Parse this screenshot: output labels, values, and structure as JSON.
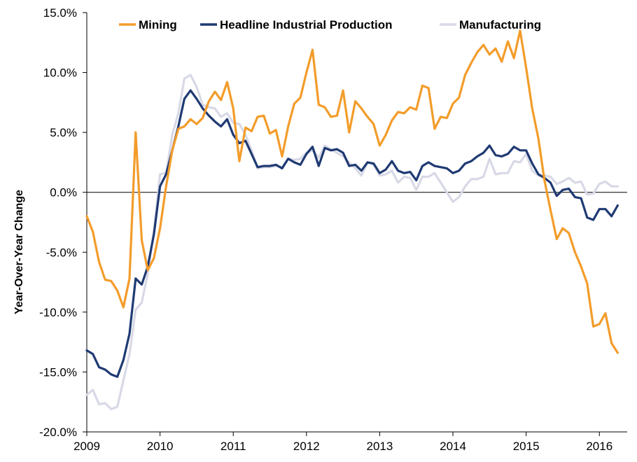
{
  "chart_data": {
    "type": "line",
    "title": "",
    "xlabel": "",
    "ylabel": "Year-Over-Year Change",
    "x_ticks": [
      "2009",
      "2010",
      "2011",
      "2012",
      "2013",
      "2014",
      "2015",
      "2016"
    ],
    "y_ticks": [
      "15.0%",
      "10.0%",
      "5.0%",
      "0.0%",
      "-5.0%",
      "-10.0%",
      "-15.0%",
      "-20.0%"
    ],
    "xlim": [
      2009.0,
      2016.38
    ],
    "ylim": [
      -20,
      15
    ],
    "grid": false,
    "legend_position": "top",
    "zero_line": true,
    "series": [
      {
        "name": "Mining",
        "color": "#F39C2A",
        "points": [
          [
            2009.0,
            -2.0
          ],
          [
            2009.083,
            -3.3
          ],
          [
            2009.167,
            -5.8
          ],
          [
            2009.25,
            -7.3
          ],
          [
            2009.333,
            -7.4
          ],
          [
            2009.417,
            -8.2
          ],
          [
            2009.5,
            -9.6
          ],
          [
            2009.583,
            -7.2
          ],
          [
            2009.667,
            5.0
          ],
          [
            2009.75,
            -4.0
          ],
          [
            2009.833,
            -6.5
          ],
          [
            2009.917,
            -5.5
          ],
          [
            2010.0,
            -3.0
          ],
          [
            2010.083,
            0.5
          ],
          [
            2010.167,
            3.5
          ],
          [
            2010.25,
            5.3
          ],
          [
            2010.333,
            5.5
          ],
          [
            2010.417,
            6.1
          ],
          [
            2010.5,
            5.7
          ],
          [
            2010.583,
            6.2
          ],
          [
            2010.667,
            7.6
          ],
          [
            2010.75,
            8.4
          ],
          [
            2010.833,
            7.7
          ],
          [
            2010.917,
            9.2
          ],
          [
            2011.0,
            7.0
          ],
          [
            2011.083,
            2.6
          ],
          [
            2011.167,
            5.4
          ],
          [
            2011.25,
            5.1
          ],
          [
            2011.333,
            6.3
          ],
          [
            2011.417,
            6.4
          ],
          [
            2011.5,
            4.9
          ],
          [
            2011.583,
            5.2
          ],
          [
            2011.667,
            3.0
          ],
          [
            2011.75,
            5.5
          ],
          [
            2011.833,
            7.4
          ],
          [
            2011.917,
            7.9
          ],
          [
            2012.0,
            10.0
          ],
          [
            2012.083,
            11.9
          ],
          [
            2012.167,
            7.3
          ],
          [
            2012.25,
            7.1
          ],
          [
            2012.333,
            6.3
          ],
          [
            2012.417,
            6.4
          ],
          [
            2012.5,
            8.5
          ],
          [
            2012.583,
            5.0
          ],
          [
            2012.667,
            7.6
          ],
          [
            2012.75,
            7.0
          ],
          [
            2012.833,
            6.3
          ],
          [
            2012.917,
            5.7
          ],
          [
            2013.0,
            3.9
          ],
          [
            2013.083,
            4.8
          ],
          [
            2013.167,
            6.0
          ],
          [
            2013.25,
            6.7
          ],
          [
            2013.333,
            6.6
          ],
          [
            2013.417,
            7.1
          ],
          [
            2013.5,
            6.9
          ],
          [
            2013.583,
            8.9
          ],
          [
            2013.667,
            8.7
          ],
          [
            2013.75,
            5.3
          ],
          [
            2013.833,
            6.3
          ],
          [
            2013.917,
            6.2
          ],
          [
            2014.0,
            7.4
          ],
          [
            2014.083,
            7.9
          ],
          [
            2014.167,
            9.8
          ],
          [
            2014.25,
            10.8
          ],
          [
            2014.333,
            11.7
          ],
          [
            2014.417,
            12.3
          ],
          [
            2014.5,
            11.5
          ],
          [
            2014.583,
            12.0
          ],
          [
            2014.667,
            10.9
          ],
          [
            2014.75,
            12.6
          ],
          [
            2014.833,
            11.2
          ],
          [
            2014.917,
            13.5
          ],
          [
            2015.0,
            10.4
          ],
          [
            2015.083,
            7.0
          ],
          [
            2015.167,
            4.5
          ],
          [
            2015.25,
            1.0
          ],
          [
            2015.333,
            -1.5
          ],
          [
            2015.417,
            -3.9
          ],
          [
            2015.5,
            -3.0
          ],
          [
            2015.583,
            -3.4
          ],
          [
            2015.667,
            -5.0
          ],
          [
            2015.75,
            -6.2
          ],
          [
            2015.833,
            -7.6
          ],
          [
            2015.917,
            -11.2
          ],
          [
            2016.0,
            -11.0
          ],
          [
            2016.083,
            -10.1
          ],
          [
            2016.167,
            -12.6
          ],
          [
            2016.25,
            -13.4
          ]
        ]
      },
      {
        "name": "Headline Industrial Production",
        "color": "#1F3A73",
        "points": [
          [
            2009.0,
            -13.2
          ],
          [
            2009.083,
            -13.5
          ],
          [
            2009.167,
            -14.6
          ],
          [
            2009.25,
            -14.8
          ],
          [
            2009.333,
            -15.2
          ],
          [
            2009.417,
            -15.4
          ],
          [
            2009.5,
            -14.0
          ],
          [
            2009.583,
            -11.8
          ],
          [
            2009.667,
            -7.2
          ],
          [
            2009.75,
            -7.7
          ],
          [
            2009.833,
            -6.2
          ],
          [
            2009.917,
            -3.5
          ],
          [
            2010.0,
            0.5
          ],
          [
            2010.083,
            1.5
          ],
          [
            2010.167,
            3.5
          ],
          [
            2010.25,
            5.5
          ],
          [
            2010.333,
            7.8
          ],
          [
            2010.417,
            8.5
          ],
          [
            2010.5,
            7.8
          ],
          [
            2010.583,
            7.0
          ],
          [
            2010.667,
            6.4
          ],
          [
            2010.75,
            5.9
          ],
          [
            2010.833,
            5.5
          ],
          [
            2010.917,
            6.1
          ],
          [
            2011.0,
            4.8
          ],
          [
            2011.083,
            4.1
          ],
          [
            2011.167,
            4.3
          ],
          [
            2011.25,
            3.2
          ],
          [
            2011.333,
            2.1
          ],
          [
            2011.417,
            2.2
          ],
          [
            2011.5,
            2.2
          ],
          [
            2011.583,
            2.3
          ],
          [
            2011.667,
            2.0
          ],
          [
            2011.75,
            2.8
          ],
          [
            2011.833,
            2.5
          ],
          [
            2011.917,
            2.3
          ],
          [
            2012.0,
            3.2
          ],
          [
            2012.083,
            3.8
          ],
          [
            2012.167,
            2.2
          ],
          [
            2012.25,
            3.7
          ],
          [
            2012.333,
            3.5
          ],
          [
            2012.417,
            3.6
          ],
          [
            2012.5,
            3.3
          ],
          [
            2012.583,
            2.2
          ],
          [
            2012.667,
            2.3
          ],
          [
            2012.75,
            1.8
          ],
          [
            2012.833,
            2.5
          ],
          [
            2012.917,
            2.4
          ],
          [
            2013.0,
            1.6
          ],
          [
            2013.083,
            1.9
          ],
          [
            2013.167,
            2.6
          ],
          [
            2013.25,
            1.8
          ],
          [
            2013.333,
            1.6
          ],
          [
            2013.417,
            1.7
          ],
          [
            2013.5,
            1.0
          ],
          [
            2013.583,
            2.2
          ],
          [
            2013.667,
            2.5
          ],
          [
            2013.75,
            2.2
          ],
          [
            2013.833,
            2.1
          ],
          [
            2013.917,
            2.0
          ],
          [
            2014.0,
            1.6
          ],
          [
            2014.083,
            1.8
          ],
          [
            2014.167,
            2.4
          ],
          [
            2014.25,
            2.6
          ],
          [
            2014.333,
            3.0
          ],
          [
            2014.417,
            3.3
          ],
          [
            2014.5,
            3.9
          ],
          [
            2014.583,
            3.1
          ],
          [
            2014.667,
            3.0
          ],
          [
            2014.75,
            3.2
          ],
          [
            2014.833,
            3.8
          ],
          [
            2014.917,
            3.5
          ],
          [
            2015.0,
            3.5
          ],
          [
            2015.083,
            2.4
          ],
          [
            2015.167,
            1.5
          ],
          [
            2015.25,
            1.2
          ],
          [
            2015.333,
            0.8
          ],
          [
            2015.417,
            -0.3
          ],
          [
            2015.5,
            0.2
          ],
          [
            2015.583,
            0.3
          ],
          [
            2015.667,
            -0.4
          ],
          [
            2015.75,
            -0.5
          ],
          [
            2015.833,
            -2.1
          ],
          [
            2015.917,
            -2.3
          ],
          [
            2016.0,
            -1.4
          ],
          [
            2016.083,
            -1.4
          ],
          [
            2016.167,
            -2.0
          ],
          [
            2016.25,
            -1.1
          ]
        ]
      },
      {
        "name": "Manufacturing",
        "color": "#D8D9E6",
        "points": [
          [
            2009.0,
            -16.9
          ],
          [
            2009.083,
            -16.5
          ],
          [
            2009.167,
            -17.7
          ],
          [
            2009.25,
            -17.6
          ],
          [
            2009.333,
            -18.1
          ],
          [
            2009.417,
            -17.9
          ],
          [
            2009.5,
            -15.7
          ],
          [
            2009.583,
            -13.5
          ],
          [
            2009.667,
            -9.8
          ],
          [
            2009.75,
            -9.2
          ],
          [
            2009.833,
            -6.8
          ],
          [
            2009.917,
            -3.2
          ],
          [
            2010.0,
            1.5
          ],
          [
            2010.083,
            1.6
          ],
          [
            2010.167,
            4.8
          ],
          [
            2010.25,
            6.6
          ],
          [
            2010.333,
            9.5
          ],
          [
            2010.417,
            9.8
          ],
          [
            2010.5,
            8.8
          ],
          [
            2010.583,
            7.3
          ],
          [
            2010.667,
            7.1
          ],
          [
            2010.75,
            7.0
          ],
          [
            2010.833,
            6.3
          ],
          [
            2010.917,
            6.6
          ],
          [
            2011.0,
            5.8
          ],
          [
            2011.083,
            5.7
          ],
          [
            2011.167,
            4.8
          ],
          [
            2011.25,
            3.5
          ],
          [
            2011.333,
            2.0
          ],
          [
            2011.417,
            2.1
          ],
          [
            2011.5,
            2.1
          ],
          [
            2011.583,
            2.2
          ],
          [
            2011.667,
            2.1
          ],
          [
            2011.75,
            2.8
          ],
          [
            2011.833,
            2.7
          ],
          [
            2011.917,
            2.8
          ],
          [
            2012.0,
            3.3
          ],
          [
            2012.083,
            3.5
          ],
          [
            2012.167,
            2.9
          ],
          [
            2012.25,
            3.9
          ],
          [
            2012.333,
            3.6
          ],
          [
            2012.417,
            3.3
          ],
          [
            2012.5,
            3.0
          ],
          [
            2012.583,
            2.5
          ],
          [
            2012.667,
            2.0
          ],
          [
            2012.75,
            1.4
          ],
          [
            2012.833,
            2.5
          ],
          [
            2012.917,
            2.3
          ],
          [
            2013.0,
            1.4
          ],
          [
            2013.083,
            1.5
          ],
          [
            2013.167,
            1.8
          ],
          [
            2013.25,
            0.8
          ],
          [
            2013.333,
            1.3
          ],
          [
            2013.417,
            1.2
          ],
          [
            2013.5,
            0.2
          ],
          [
            2013.583,
            1.3
          ],
          [
            2013.667,
            1.3
          ],
          [
            2013.75,
            1.6
          ],
          [
            2013.833,
            0.8
          ],
          [
            2013.917,
            0.0
          ],
          [
            2014.0,
            -0.8
          ],
          [
            2014.083,
            -0.4
          ],
          [
            2014.167,
            0.5
          ],
          [
            2014.25,
            1.1
          ],
          [
            2014.333,
            1.1
          ],
          [
            2014.417,
            1.3
          ],
          [
            2014.5,
            2.8
          ],
          [
            2014.583,
            1.5
          ],
          [
            2014.667,
            1.6
          ],
          [
            2014.75,
            1.6
          ],
          [
            2014.833,
            2.6
          ],
          [
            2014.917,
            2.5
          ],
          [
            2015.0,
            3.2
          ],
          [
            2015.083,
            1.8
          ],
          [
            2015.167,
            1.4
          ],
          [
            2015.25,
            1.4
          ],
          [
            2015.333,
            1.3
          ],
          [
            2015.417,
            0.7
          ],
          [
            2015.5,
            0.9
          ],
          [
            2015.583,
            1.2
          ],
          [
            2015.667,
            0.8
          ],
          [
            2015.75,
            0.9
          ],
          [
            2015.833,
            -0.2
          ],
          [
            2015.917,
            -0.1
          ],
          [
            2016.0,
            0.7
          ],
          [
            2016.083,
            0.9
          ],
          [
            2016.167,
            0.5
          ],
          [
            2016.25,
            0.5
          ]
        ]
      }
    ]
  }
}
